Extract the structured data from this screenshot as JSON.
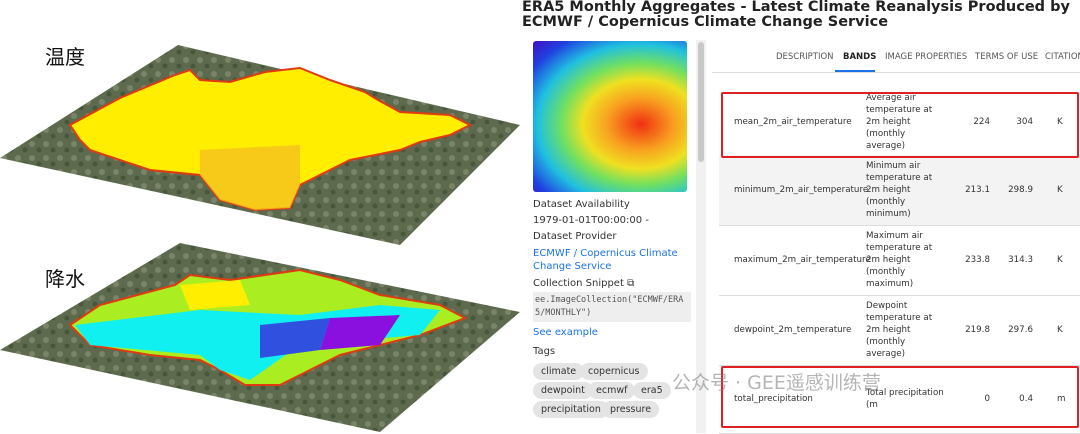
{
  "left": {
    "labels": [
      "温度",
      "降水"
    ]
  },
  "dataset": {
    "title": "ERA5 Monthly Aggregates - Latest Climate Reanalysis Produced by ECMWF / Copernicus Climate Change Service",
    "availability_label": "Dataset Availability",
    "availability": "1979-01-01T00:00:00 -",
    "provider_label": "Dataset Provider",
    "provider": "ECMWF / Copernicus Climate Change Service",
    "snippet_label": "Collection Snippet",
    "snippet": "ee.ImageCollection(\"ECMWF/ERA5/MONTHLY\")",
    "see_example": "See example",
    "tags_label": "Tags",
    "tags": [
      "climate",
      "copernicus",
      "dewpoint",
      "ecmwf",
      "era5",
      "precipitation",
      "pressure"
    ],
    "tabs": [
      "DESCRIPTION",
      "BANDS",
      "IMAGE PROPERTIES",
      "TERMS OF USE",
      "CITATION"
    ],
    "bands": [
      [
        "mean_2m_air_temperature",
        "Average air temperature at 2m height (monthly average)",
        "224",
        "304",
        "K"
      ],
      [
        "minimum_2m_air_temperature",
        "Minimum air temperature at 2m height (monthly minimum)",
        "213.1",
        "298.9",
        "K"
      ],
      [
        "maximum_2m_air_temperature",
        "Maximum air temperature at 2m height (monthly maximum)",
        "233.8",
        "314.3",
        "K"
      ],
      [
        "dewpoint_2m_temperature",
        "Dewpoint temperature at 2m height (monthly average)",
        "219.8",
        "297.6",
        "K"
      ],
      [
        "total_precipitation",
        "Total precipitation (m",
        "0",
        "0.4",
        "m"
      ]
    ]
  },
  "watermark": "公众号 · GEE遥感训练营"
}
